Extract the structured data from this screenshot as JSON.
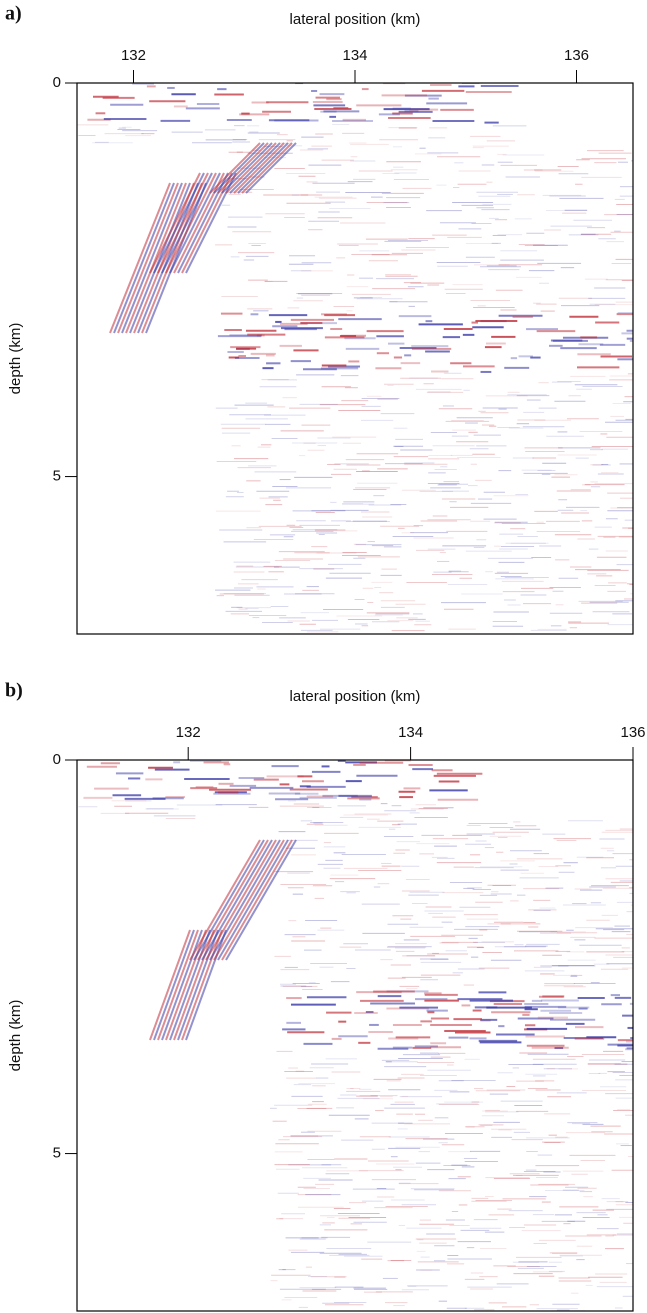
{
  "chart_data": [
    {
      "type": "image",
      "panel_label": "a)",
      "x_label": "lateral position (km)",
      "y_label": "depth (km)",
      "xlim": [
        131.49,
        136.51
      ],
      "xticks": [
        132,
        134,
        136
      ],
      "ylim": [
        0,
        7
      ],
      "yticks": [
        0,
        5
      ],
      "x_axis_position": "top",
      "y_inverted": true
    },
    {
      "type": "image",
      "panel_label": "b)",
      "x_label": "lateral position (km)",
      "y_label": "depth (km)",
      "xlim": [
        131,
        136
      ],
      "xticks": [
        132,
        134,
        136
      ],
      "ylim": [
        0,
        7
      ],
      "yticks": [
        0,
        5
      ],
      "x_axis_position": "top",
      "y_inverted": true
    }
  ]
}
